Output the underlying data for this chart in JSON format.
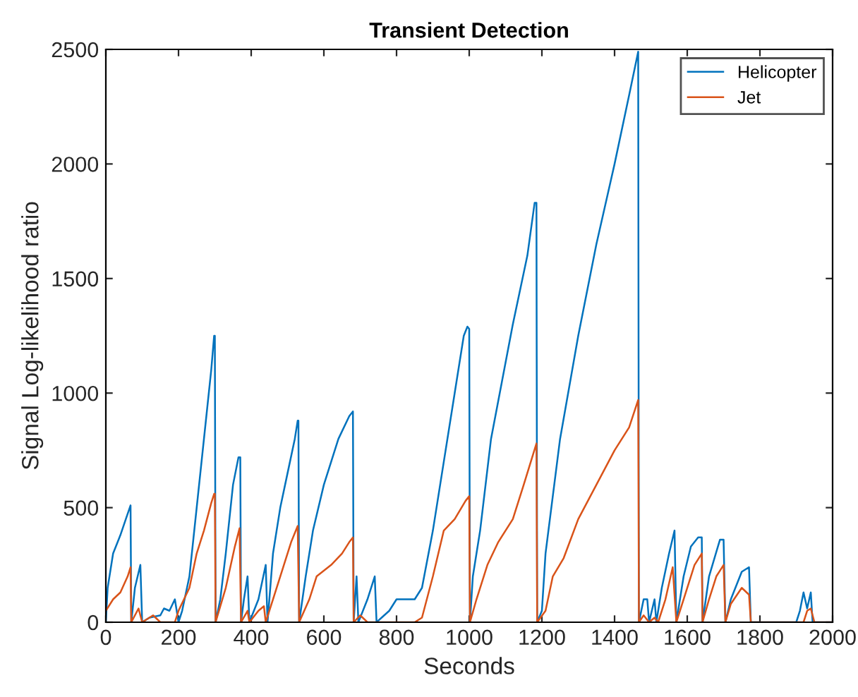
{
  "chart_data": {
    "type": "line",
    "title": "Transient Detection",
    "xlabel": "Seconds",
    "ylabel": "Signal Log-likelihood ratio",
    "xlim": [
      0,
      2000
    ],
    "xticks": [
      0,
      200,
      400,
      600,
      800,
      1000,
      1200,
      1400,
      1600,
      1800,
      2000
    ],
    "ylim": [
      0,
      2500
    ],
    "yticks": [
      0,
      500,
      1000,
      1500,
      2000,
      2500
    ],
    "grid": false,
    "legend": "top right",
    "marker": "none",
    "line_style": "solid",
    "series": [
      {
        "name": "Helicopter",
        "color": "#0072bd",
        "x": [
          0,
          5,
          20,
          40,
          55,
          68,
          70,
          80,
          95,
          100,
          120,
          150,
          160,
          175,
          190,
          200,
          210,
          230,
          250,
          270,
          290,
          298,
          300,
          302,
          315,
          330,
          350,
          365,
          370,
          372,
          380,
          390,
          395,
          420,
          440,
          445,
          460,
          480,
          500,
          520,
          528,
          530,
          532,
          550,
          570,
          600,
          620,
          640,
          670,
          680,
          682,
          690,
          695,
          720,
          740,
          745,
          780,
          800,
          850,
          870,
          900,
          930,
          960,
          985,
          995,
          1000,
          1002,
          1010,
          1030,
          1060,
          1090,
          1120,
          1160,
          1180,
          1185,
          1187,
          1200,
          1210,
          1250,
          1300,
          1350,
          1400,
          1440,
          1465,
          1467,
          1480,
          1490,
          1495,
          1510,
          1515,
          1530,
          1550,
          1565,
          1570,
          1590,
          1610,
          1630,
          1640,
          1642,
          1660,
          1690,
          1700,
          1705,
          1720,
          1750,
          1770,
          1775,
          1800,
          1900,
          1910,
          1920,
          1930,
          1940,
          1945,
          2000
        ],
        "values": [
          0,
          150,
          300,
          380,
          450,
          510,
          0,
          150,
          250,
          0,
          20,
          30,
          60,
          50,
          100,
          0,
          50,
          200,
          500,
          800,
          1100,
          1250,
          1250,
          0,
          100,
          300,
          600,
          720,
          720,
          0,
          100,
          200,
          0,
          100,
          250,
          0,
          300,
          500,
          650,
          800,
          880,
          880,
          0,
          200,
          400,
          600,
          700,
          800,
          900,
          920,
          0,
          200,
          0,
          100,
          200,
          0,
          50,
          100,
          100,
          150,
          400,
          700,
          1000,
          1250,
          1290,
          1280,
          0,
          200,
          400,
          800,
          1050,
          1300,
          1600,
          1830,
          1830,
          0,
          50,
          300,
          800,
          1250,
          1650,
          2000,
          2300,
          2490,
          0,
          100,
          100,
          0,
          100,
          0,
          150,
          300,
          400,
          0,
          200,
          330,
          370,
          370,
          0,
          200,
          360,
          360,
          0,
          100,
          220,
          240,
          0,
          0,
          0,
          50,
          130,
          60,
          130,
          0,
          0
        ]
      },
      {
        "name": "Jet",
        "color": "#d95319",
        "x": [
          0,
          20,
          40,
          60,
          68,
          70,
          90,
          100,
          130,
          150,
          190,
          200,
          230,
          250,
          270,
          290,
          298,
          300,
          302,
          330,
          355,
          368,
          372,
          390,
          395,
          420,
          435,
          440,
          460,
          490,
          510,
          528,
          532,
          560,
          580,
          620,
          650,
          670,
          680,
          682,
          700,
          720,
          800,
          850,
          870,
          900,
          930,
          960,
          990,
          1000,
          1002,
          1020,
          1050,
          1080,
          1120,
          1150,
          1185,
          1187,
          1210,
          1230,
          1260,
          1300,
          1350,
          1400,
          1440,
          1465,
          1467,
          1480,
          1495,
          1510,
          1520,
          1540,
          1560,
          1570,
          1590,
          1620,
          1640,
          1642,
          1660,
          1680,
          1700,
          1705,
          1720,
          1750,
          1770,
          1775,
          1920,
          1930,
          1940,
          1950,
          2000
        ],
        "values": [
          50,
          100,
          130,
          200,
          240,
          0,
          60,
          0,
          30,
          0,
          0,
          50,
          150,
          300,
          400,
          520,
          560,
          560,
          0,
          150,
          330,
          410,
          0,
          50,
          0,
          50,
          70,
          0,
          100,
          250,
          350,
          420,
          0,
          100,
          200,
          250,
          300,
          350,
          370,
          0,
          30,
          0,
          0,
          0,
          20,
          200,
          400,
          450,
          530,
          550,
          0,
          100,
          250,
          350,
          450,
          600,
          780,
          0,
          50,
          200,
          280,
          450,
          600,
          750,
          850,
          970,
          0,
          30,
          0,
          20,
          0,
          100,
          240,
          0,
          100,
          250,
          300,
          0,
          100,
          200,
          250,
          0,
          80,
          150,
          120,
          0,
          0,
          50,
          60,
          0,
          0
        ]
      }
    ]
  }
}
